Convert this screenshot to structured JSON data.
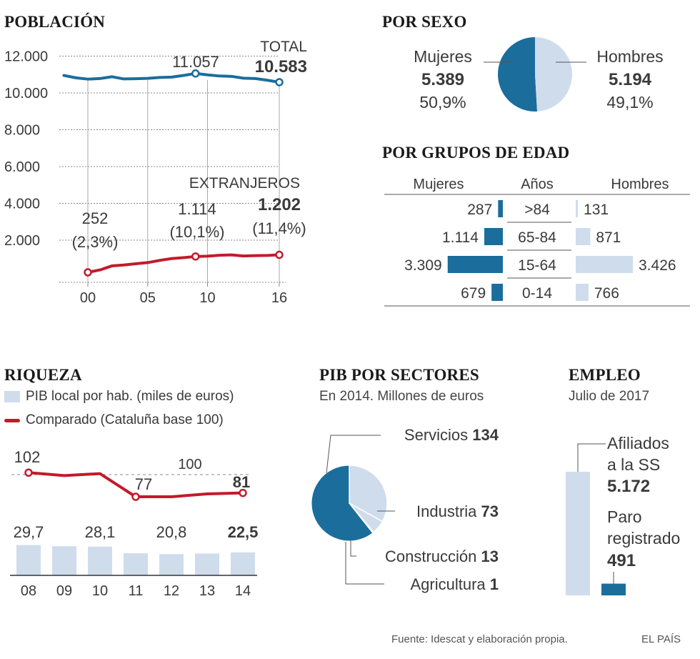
{
  "headings": {
    "poblacion": "POBLACIÓN",
    "sexo": "POR SEXO",
    "edad": "POR GRUPOS DE EDAD",
    "riqueza": "RIQUEZA",
    "pib": "PIB POR SECTORES",
    "pib_sub": "En 2014. Millones de euros",
    "empleo": "EMPLEO",
    "empleo_sub": "Julio de 2017"
  },
  "footer": {
    "source": "Fuente: Idescat y elaboración propia.",
    "brand": "EL PAÍS"
  },
  "colors": {
    "blue": "#1b6d9c",
    "light_blue": "#cfdcec",
    "red": "#c11b2b",
    "text": "#3a3a3a"
  },
  "chart_data": [
    {
      "id": "poblacion",
      "type": "line",
      "y_ticks": [
        "12.000",
        "10.000",
        "8.000",
        "6.000",
        "4.000",
        "2.000"
      ],
      "y_tick_values": [
        12000,
        10000,
        8000,
        6000,
        4000,
        2000
      ],
      "x_ticks": [
        "00",
        "05",
        "10",
        "16"
      ],
      "x_tick_values": [
        2000,
        2005,
        2010,
        2016
      ],
      "ylim": [
        0,
        12000
      ],
      "xlim": [
        1998,
        2016
      ],
      "series": [
        {
          "name": "TOTAL",
          "color": "#1b6d9c",
          "x": [
            1998,
            1999,
            2000,
            2001,
            2002,
            2003,
            2004,
            2005,
            2006,
            2007,
            2008,
            2009,
            2010,
            2011,
            2012,
            2013,
            2014,
            2015,
            2016
          ],
          "values": [
            10950,
            10820,
            10750,
            10780,
            10880,
            10760,
            10770,
            10790,
            10840,
            10860,
            10950,
            11057,
            10980,
            10920,
            10900,
            10800,
            10780,
            10690,
            10583
          ]
        },
        {
          "name": "EXTRANJEROS",
          "color": "#c11b2b",
          "x": [
            2000,
            2001,
            2002,
            2003,
            2004,
            2005,
            2006,
            2007,
            2008,
            2009,
            2010,
            2011,
            2012,
            2013,
            2014,
            2015,
            2016
          ],
          "values": [
            252,
            380,
            600,
            650,
            720,
            780,
            900,
            1000,
            1050,
            1114,
            1130,
            1180,
            1200,
            1140,
            1160,
            1170,
            1202
          ]
        }
      ],
      "annotations": [
        {
          "label": "11.057",
          "x": 2009,
          "series": "TOTAL"
        },
        {
          "label": "TOTAL",
          "value": "10.583",
          "x": 2016,
          "series": "TOTAL"
        },
        {
          "label": "252",
          "sub": "(2,3%)",
          "x": 2000,
          "series": "EXTRANJEROS"
        },
        {
          "label": "1.114",
          "sub": "(10,1%)",
          "x": 2009,
          "series": "EXTRANJEROS"
        },
        {
          "label": "EXTRANJEROS",
          "value": "1.202",
          "sub": "(11,4%)",
          "x": 2016,
          "series": "EXTRANJEROS"
        }
      ]
    },
    {
      "id": "por_sexo",
      "type": "pie",
      "slices": [
        {
          "name": "Mujeres",
          "value": "5.389",
          "number": 5389,
          "pct": "50,9%",
          "color": "#1b6d9c"
        },
        {
          "name": "Hombres",
          "value": "5.194",
          "number": 5194,
          "pct": "49,1%",
          "color": "#cfdcec"
        }
      ]
    },
    {
      "id": "grupos_edad",
      "type": "bar",
      "headers": {
        "left": "Mujeres",
        "center": "Años",
        "right": "Hombres"
      },
      "categories": [
        ">84",
        "65-84",
        "15-64",
        "0-14"
      ],
      "series": [
        {
          "name": "Mujeres",
          "values": [
            287,
            1114,
            3309,
            679
          ],
          "labels": [
            "287",
            "1.114",
            "3.309",
            "679"
          ],
          "color": "#1b6d9c"
        },
        {
          "name": "Hombres",
          "values": [
            131,
            871,
            3426,
            766
          ],
          "labels": [
            "131",
            "871",
            "3.426",
            "766"
          ],
          "color": "#cfdcec"
        }
      ]
    },
    {
      "id": "riqueza",
      "type": "bar",
      "legend": [
        {
          "label": "PIB local por hab. (miles de euros)",
          "kind": "bar",
          "color": "#cfdcec"
        },
        {
          "label": "Comparado (Cataluña base 100)",
          "kind": "line",
          "color": "#c11b2b"
        }
      ],
      "categories": [
        "08",
        "09",
        "10",
        "11",
        "12",
        "13",
        "14"
      ],
      "series": [
        {
          "name": "PIB local por hab. (miles de euros)",
          "type": "bar",
          "values": [
            29.7,
            28.5,
            28.1,
            21.6,
            20.8,
            21.4,
            22.5
          ],
          "labels": [
            "29,7",
            "",
            "28,1",
            "",
            "20,8",
            "",
            "22,5"
          ]
        },
        {
          "name": "Comparado (Cataluña base 100)",
          "type": "line",
          "values": [
            102,
            99,
            101,
            77,
            77,
            80,
            81
          ],
          "labels": [
            "102",
            "",
            "",
            "77",
            "",
            "",
            "81"
          ]
        }
      ],
      "reference": {
        "value": 100,
        "label": "100"
      }
    },
    {
      "id": "pib_sectores",
      "type": "pie",
      "slices": [
        {
          "name": "Servicios",
          "value": "134",
          "number": 134,
          "color": "#1b6d9c"
        },
        {
          "name": "Industria",
          "value": "73",
          "number": 73,
          "color": "#cfdcec"
        },
        {
          "name": "Construcción",
          "value": "13",
          "number": 13,
          "color": "#cfdcec"
        },
        {
          "name": "Agricultura",
          "value": "1",
          "number": 1,
          "color": "#cfdcec"
        }
      ]
    },
    {
      "id": "empleo",
      "type": "bar",
      "categories": [
        "Afiliados a la SS",
        "Paro registrado"
      ],
      "values": [
        5172,
        491
      ],
      "items": [
        {
          "line1": "Afiliados",
          "line2": "a la SS",
          "value": "5.172",
          "color": "#cfdcec"
        },
        {
          "line1": "Paro",
          "line2": "registrado",
          "value": "491",
          "color": "#1b6d9c"
        }
      ]
    }
  ]
}
